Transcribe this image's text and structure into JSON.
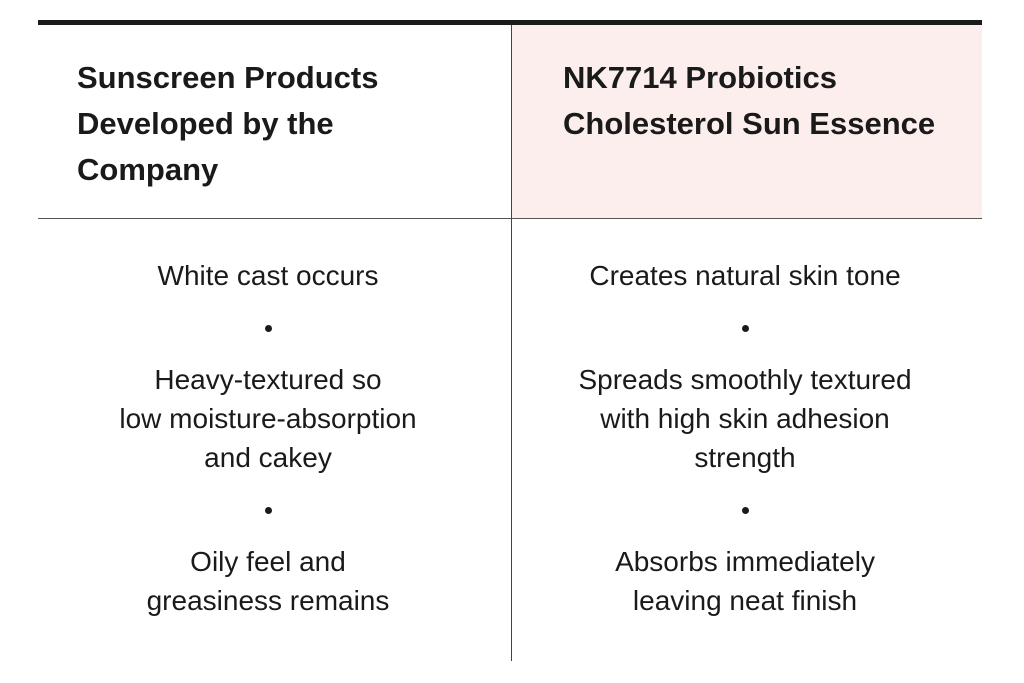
{
  "table": {
    "columns": [
      {
        "header": [
          "Sunscreen Products",
          "Developed by the",
          "Company"
        ],
        "items": [
          [
            "White cast occurs"
          ],
          [
            "Heavy-textured so",
            "low moisture-absorption",
            "and cakey"
          ],
          [
            "Oily feel and",
            "greasiness remains"
          ]
        ]
      },
      {
        "header": [
          "NK7714 Probiotics",
          "Cholesterol Sun Essence"
        ],
        "items": [
          [
            "Creates natural skin tone"
          ],
          [
            "Spreads smoothly textured",
            "with high skin adhesion",
            "strength"
          ],
          [
            "Absorbs immediately",
            "leaving neat finish"
          ]
        ]
      }
    ]
  }
}
